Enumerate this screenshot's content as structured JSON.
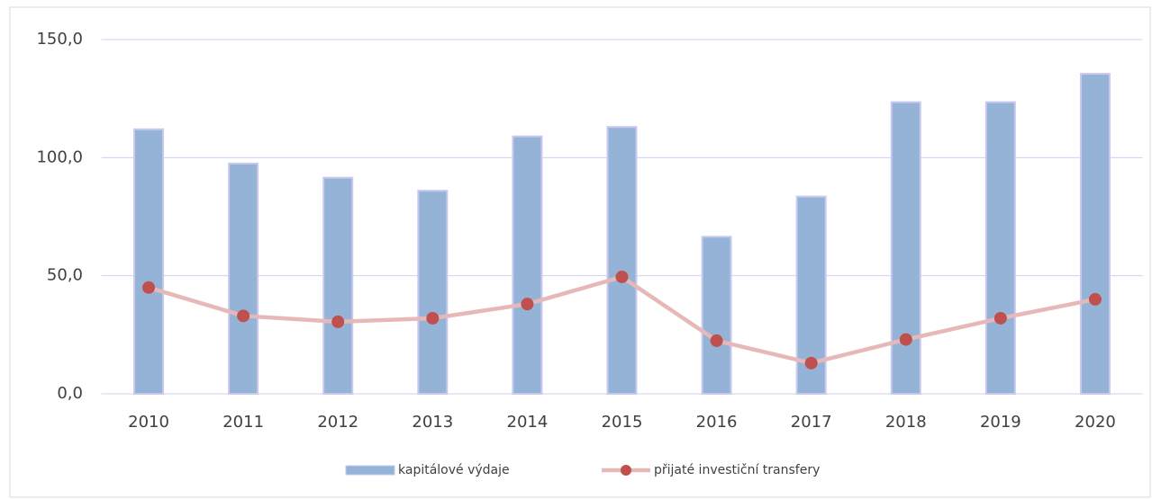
{
  "chart_data": {
    "type": "bar",
    "categories": [
      "2010",
      "2011",
      "2012",
      "2013",
      "2014",
      "2015",
      "2016",
      "2017",
      "2018",
      "2019",
      "2020"
    ],
    "series": [
      {
        "name": "kapitálové výdaje",
        "type": "bar",
        "color": "#95b3d7",
        "values": [
          112,
          97.5,
          91.5,
          86,
          109,
          113,
          66.5,
          83.5,
          123.5,
          123.5,
          135.5
        ]
      },
      {
        "name": "přijaté investiční transfery",
        "type": "line",
        "color": "#e6b9b8",
        "marker_color": "#c0504d",
        "values": [
          45,
          33,
          30.5,
          32,
          38,
          49.5,
          22.5,
          13,
          23,
          32,
          40
        ]
      }
    ],
    "ylim": [
      0,
      150
    ],
    "yticks": [
      {
        "value": 0,
        "label": "0,0"
      },
      {
        "value": 50,
        "label": "50,0"
      },
      {
        "value": 100,
        "label": "100,0"
      },
      {
        "value": 150,
        "label": "150,0"
      }
    ],
    "grid": true,
    "legend": "bottom"
  }
}
